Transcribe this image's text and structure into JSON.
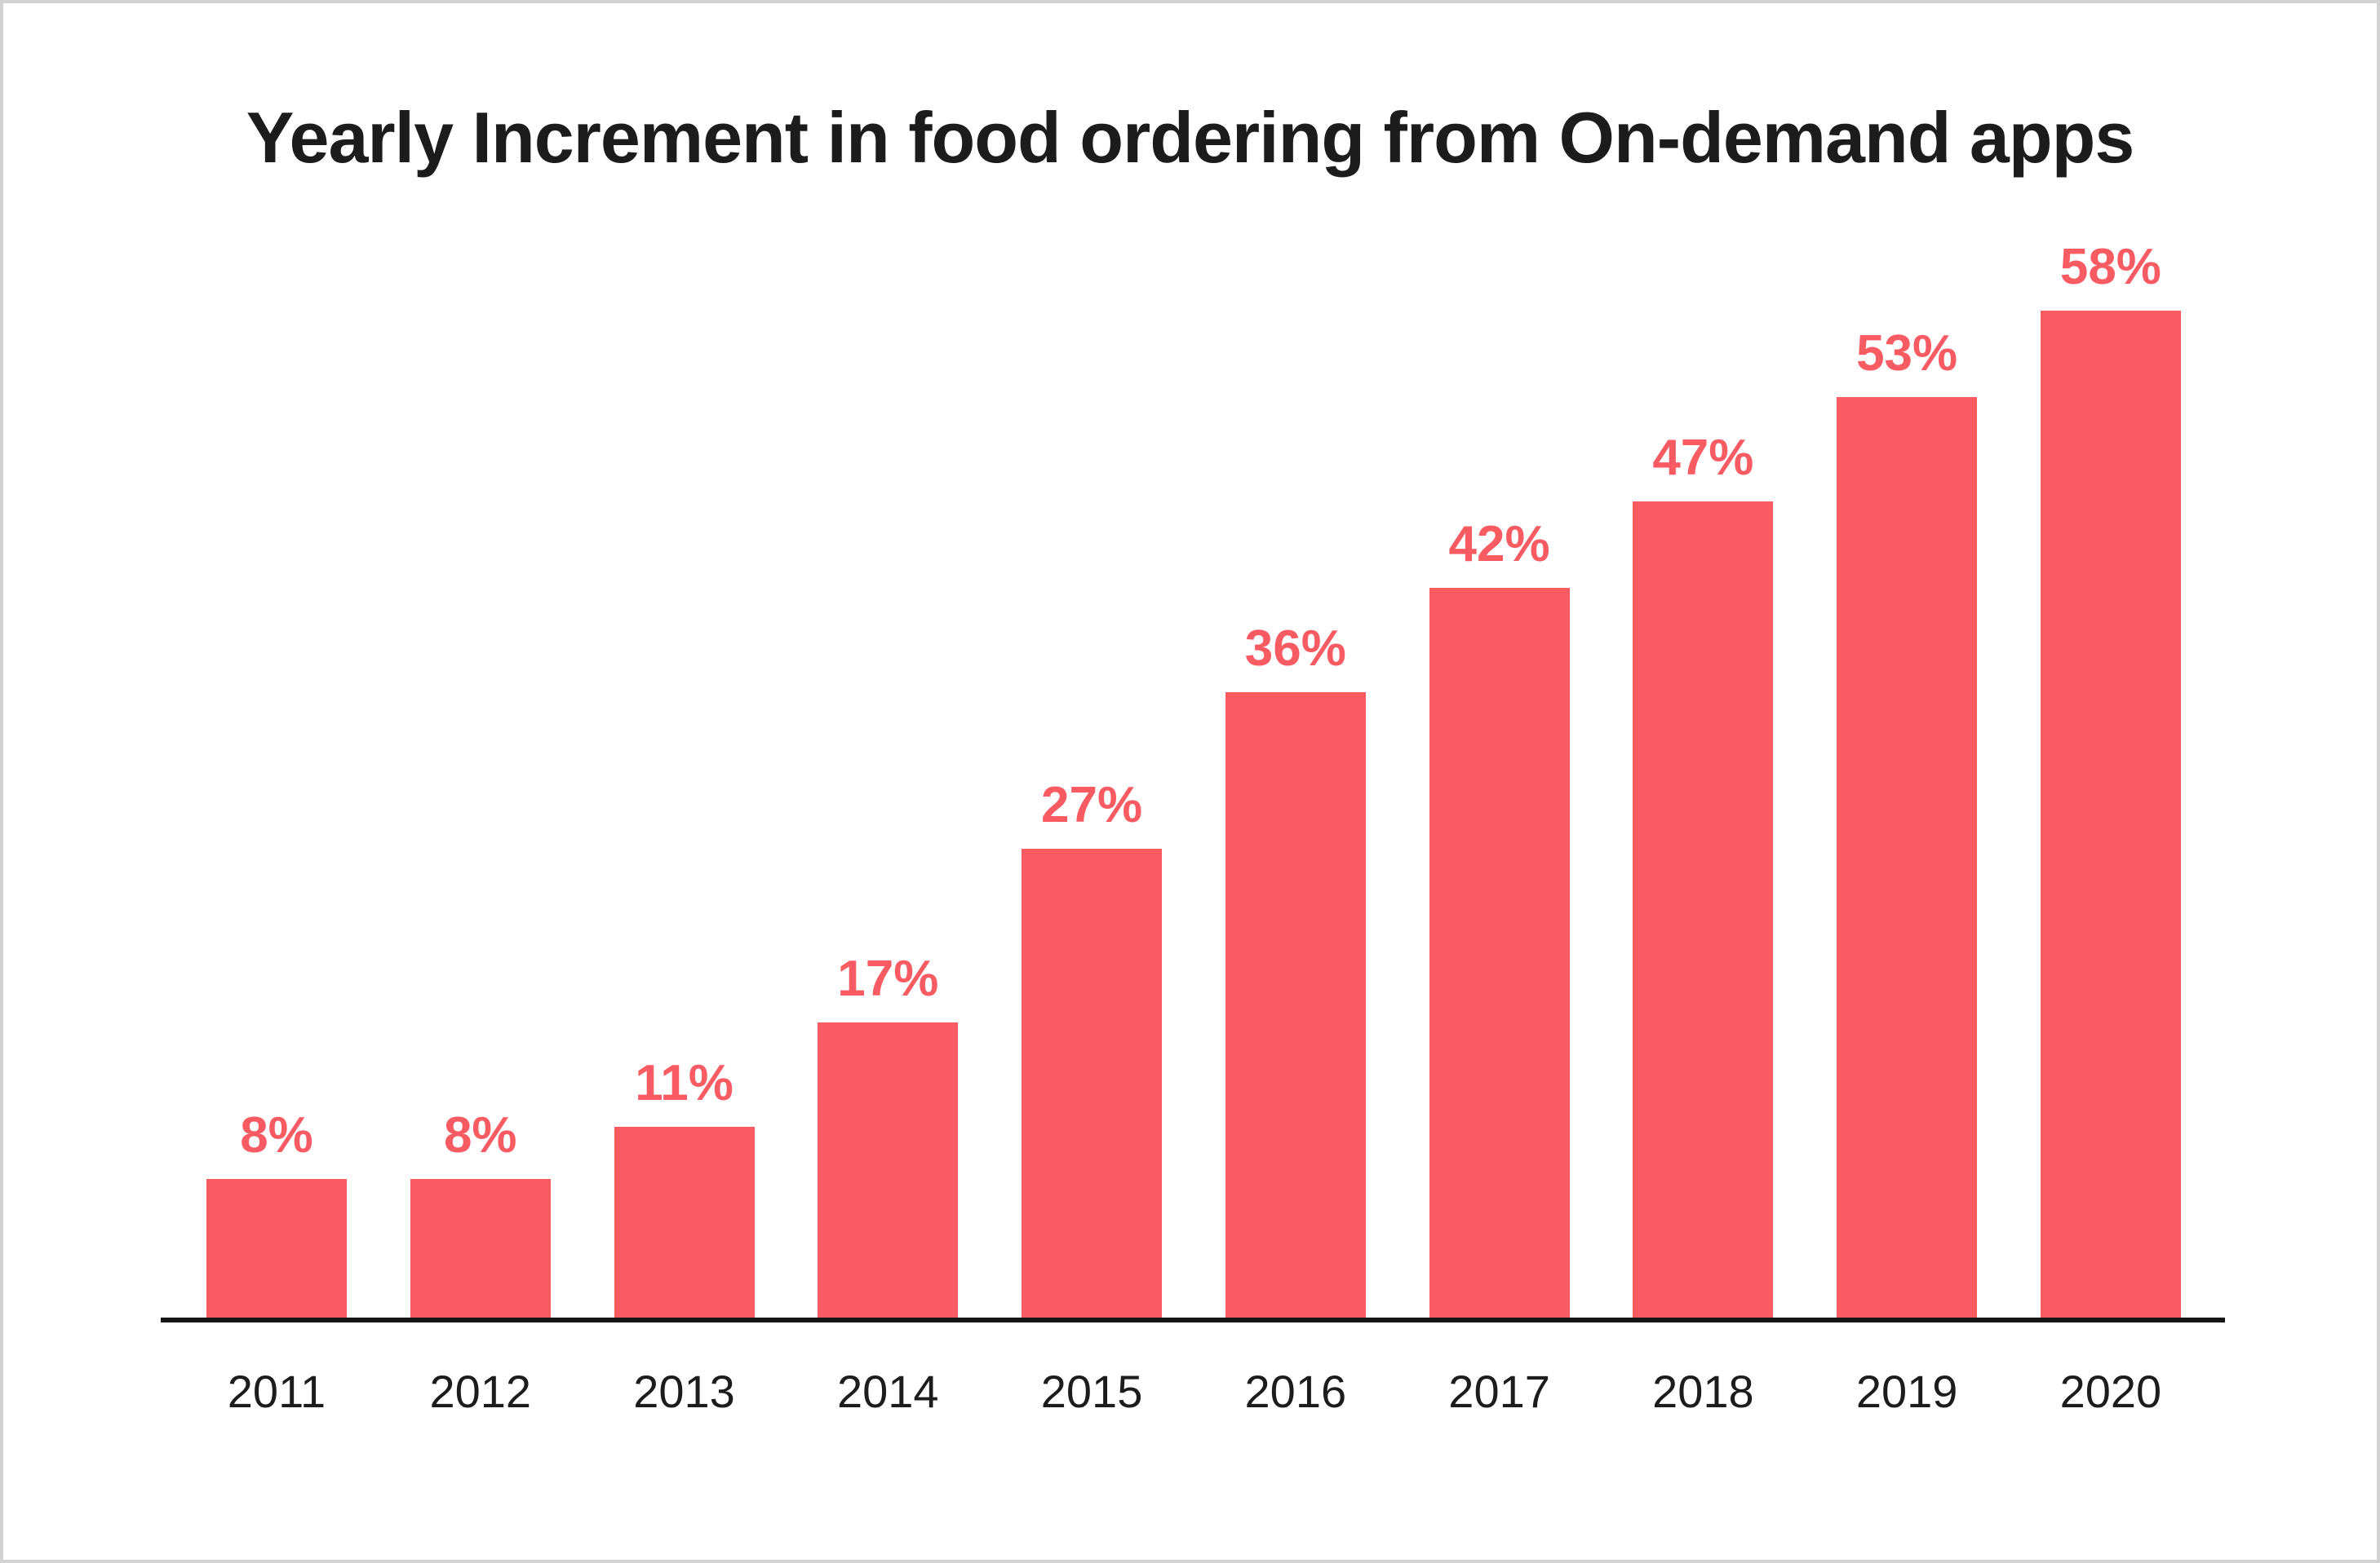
{
  "title": "Yearly Increment in food ordering from On-demand apps",
  "colors": {
    "bar": "#f95b63",
    "value_label": "#f95b63",
    "text": "#1c1c1c",
    "axis": "#141414",
    "border": "#d2d2d2",
    "background": "#ffffff"
  },
  "chart_data": {
    "type": "bar",
    "title": "Yearly Increment in food ordering from On-demand apps",
    "categories": [
      "2011",
      "2012",
      "2013",
      "2014",
      "2015",
      "2016",
      "2017",
      "2018",
      "2019",
      "2020"
    ],
    "values": [
      8,
      8,
      11,
      17,
      27,
      36,
      42,
      47,
      53,
      58
    ],
    "unit": "%",
    "data_labels": [
      "8%",
      "8%",
      "11%",
      "17%",
      "27%",
      "36%",
      "42%",
      "47%",
      "53%",
      "58%"
    ],
    "xlabel": "",
    "ylabel": "",
    "ylim": [
      0,
      60
    ],
    "grid": false,
    "legend": "none",
    "data_label_position": "above-bars",
    "y_axis_visible": false,
    "x_axis_visible": true
  }
}
